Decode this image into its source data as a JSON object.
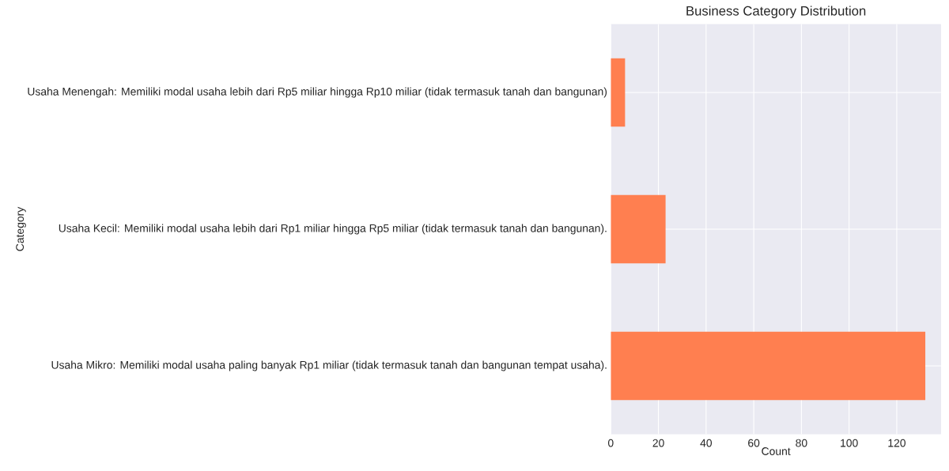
{
  "chart_data": {
    "type": "bar",
    "orientation": "horizontal",
    "title": "Business Category Distribution",
    "xlabel": "Count",
    "ylabel": "Category",
    "categories": [
      "Usaha Menengah: Memiliki modal usaha lebih dari Rp5 miliar hingga Rp10 miliar (tidak termasuk tanah dan bangunan)",
      "Usaha Kecil: Memiliki modal usaha lebih dari Rp1 miliar hingga Rp5 miliar (tidak termasuk tanah dan bangunan).",
      "Usaha Mikro: Memiliki modal usaha paling banyak Rp1 miliar (tidak termasuk tanah dan bangunan tempat usaha)."
    ],
    "values": [
      6,
      23,
      132
    ],
    "color": "#ff7f50",
    "xlim": [
      0,
      138.6
    ],
    "xticks": [
      0,
      20,
      40,
      60,
      80,
      100,
      120
    ],
    "grid": true
  }
}
